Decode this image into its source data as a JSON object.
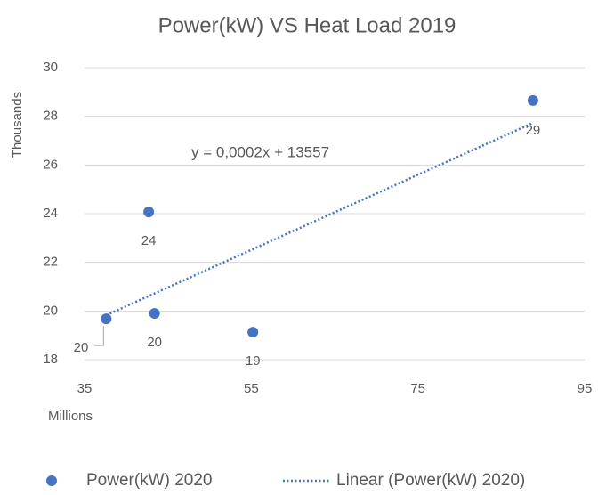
{
  "chart_data": {
    "type": "scatter",
    "title": "Power(kW) VS Heat Load 2019",
    "x_label": "Millions",
    "y_label": "Thousands",
    "series": [
      {
        "name": "Power(kW) 2020",
        "color": "#4472c4",
        "x": [
          37.6,
          42.7,
          43.4,
          55.2,
          88.8
        ],
        "values": [
          19.68,
          24.07,
          19.9,
          19.13,
          28.65
        ],
        "value_labels": [
          "20",
          "24",
          "20",
          "19",
          "29"
        ]
      }
    ],
    "trendline": {
      "name": "Linear (Power(kW) 2020)",
      "equation": "y = 0,0002x + 13557",
      "color": "#4472c4"
    },
    "xlim": [
      35,
      95
    ],
    "xticks": [
      35,
      55,
      75,
      95
    ],
    "ylim": [
      18,
      30
    ],
    "yticks": [
      18,
      20,
      22,
      24,
      26,
      28,
      30
    ],
    "grid": true,
    "legend": "bottom"
  }
}
